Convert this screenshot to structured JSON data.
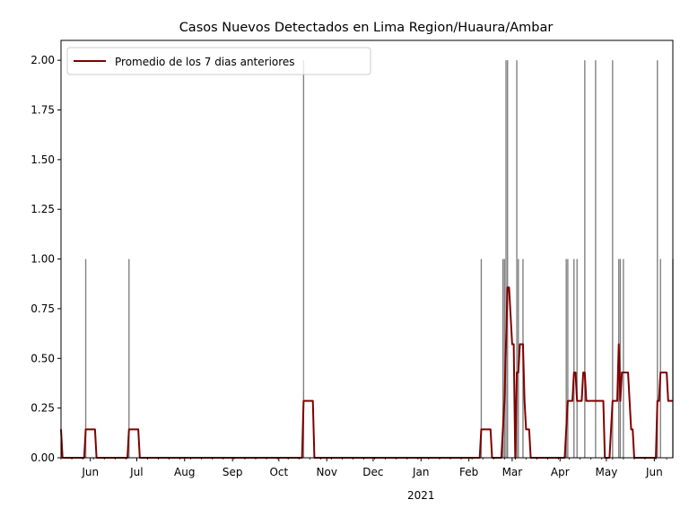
{
  "chart_data": {
    "type": "bar+line",
    "title": "Casos Nuevos Detectados en Lima Region/Huaura/Ambar",
    "xlabel": "",
    "ylabel": "",
    "date_range": [
      "2020-05-13",
      "2021-06-13"
    ],
    "ylim": [
      0,
      2.1
    ],
    "yticks": [
      0,
      0.25,
      0.5,
      0.75,
      1.0,
      1.25,
      1.5,
      1.75,
      2.0
    ],
    "ytick_labels": [
      "0.00",
      "0.25",
      "0.50",
      "0.75",
      "1.00",
      "1.25",
      "1.50",
      "1.75",
      "2.00"
    ],
    "xticks": [
      {
        "date": "2020-06-01",
        "label": "Jun"
      },
      {
        "date": "2020-07-01",
        "label": "Jul"
      },
      {
        "date": "2020-08-01",
        "label": "Aug"
      },
      {
        "date": "2020-09-01",
        "label": "Sep"
      },
      {
        "date": "2020-10-01",
        "label": "Oct"
      },
      {
        "date": "2020-11-01",
        "label": "Nov"
      },
      {
        "date": "2020-12-01",
        "label": "Dec"
      },
      {
        "date": "2021-01-01",
        "label": "Jan"
      },
      {
        "date": "2021-02-01",
        "label": "Feb"
      },
      {
        "date": "2021-03-01",
        "label": "Mar"
      },
      {
        "date": "2021-04-01",
        "label": "Apr"
      },
      {
        "date": "2021-05-01",
        "label": "May"
      },
      {
        "date": "2021-06-01",
        "label": "Jun"
      }
    ],
    "year_label": {
      "date": "2021-01-01",
      "label": "2021"
    },
    "bar_color": "#808080",
    "line_color": "#800000",
    "legend": {
      "position": "top-left",
      "label": "Promedio de los 7 dias anteriores"
    },
    "bars": [
      {
        "date": "2020-05-29",
        "value": 1
      },
      {
        "date": "2020-06-26",
        "value": 1
      },
      {
        "date": "2020-10-17",
        "value": 2
      },
      {
        "date": "2021-02-09",
        "value": 1
      },
      {
        "date": "2021-02-23",
        "value": 1
      },
      {
        "date": "2021-02-24",
        "value": 1
      },
      {
        "date": "2021-02-25",
        "value": 2
      },
      {
        "date": "2021-02-26",
        "value": 2
      },
      {
        "date": "2021-03-04",
        "value": 2
      },
      {
        "date": "2021-03-05",
        "value": 1
      },
      {
        "date": "2021-03-08",
        "value": 1
      },
      {
        "date": "2021-04-05",
        "value": 1
      },
      {
        "date": "2021-04-06",
        "value": 1
      },
      {
        "date": "2021-04-10",
        "value": 1
      },
      {
        "date": "2021-04-12",
        "value": 1
      },
      {
        "date": "2021-04-17",
        "value": 2
      },
      {
        "date": "2021-04-24",
        "value": 2
      },
      {
        "date": "2021-05-05",
        "value": 2
      },
      {
        "date": "2021-05-09",
        "value": 1
      },
      {
        "date": "2021-05-10",
        "value": 1
      },
      {
        "date": "2021-05-12",
        "value": 1
      },
      {
        "date": "2021-06-03",
        "value": 2
      },
      {
        "date": "2021-06-05",
        "value": 1
      },
      {
        "date": "2021-06-13",
        "value": 1
      }
    ],
    "series": [
      {
        "name": "Promedio de los 7 dias anteriores",
        "points": [
          [
            "2020-05-13",
            0.143
          ],
          [
            "2020-05-14",
            0
          ],
          [
            "2020-05-28",
            0
          ],
          [
            "2020-05-29",
            0.143
          ],
          [
            "2020-06-04",
            0.143
          ],
          [
            "2020-06-05",
            0
          ],
          [
            "2020-06-25",
            0
          ],
          [
            "2020-06-26",
            0.143
          ],
          [
            "2020-07-02",
            0.143
          ],
          [
            "2020-07-03",
            0
          ],
          [
            "2020-10-16",
            0
          ],
          [
            "2020-10-17",
            0.286
          ],
          [
            "2020-10-23",
            0.286
          ],
          [
            "2020-10-24",
            0
          ],
          [
            "2021-02-08",
            0
          ],
          [
            "2021-02-09",
            0.143
          ],
          [
            "2021-02-15",
            0.143
          ],
          [
            "2021-02-16",
            0
          ],
          [
            "2021-02-22",
            0
          ],
          [
            "2021-02-23",
            0.143
          ],
          [
            "2021-02-24",
            0.286
          ],
          [
            "2021-02-25",
            0.571
          ],
          [
            "2021-02-26",
            0.857
          ],
          [
            "2021-02-27",
            0.857
          ],
          [
            "2021-03-01",
            0.571
          ],
          [
            "2021-03-02",
            0.571
          ],
          [
            "2021-03-03",
            0
          ],
          [
            "2021-03-04",
            0.429
          ],
          [
            "2021-03-05",
            0.429
          ],
          [
            "2021-03-06",
            0.571
          ],
          [
            "2021-03-08",
            0.571
          ],
          [
            "2021-03-09",
            0.286
          ],
          [
            "2021-03-10",
            0.143
          ],
          [
            "2021-03-12",
            0.143
          ],
          [
            "2021-03-13",
            0
          ],
          [
            "2021-04-04",
            0
          ],
          [
            "2021-04-05",
            0.143
          ],
          [
            "2021-04-06",
            0.286
          ],
          [
            "2021-04-09",
            0.286
          ],
          [
            "2021-04-10",
            0.429
          ],
          [
            "2021-04-11",
            0.429
          ],
          [
            "2021-04-12",
            0.286
          ],
          [
            "2021-04-15",
            0.286
          ],
          [
            "2021-04-16",
            0.429
          ],
          [
            "2021-04-17",
            0.429
          ],
          [
            "2021-04-18",
            0.286
          ],
          [
            "2021-04-29",
            0.286
          ],
          [
            "2021-04-30",
            0
          ],
          [
            "2021-05-03",
            0
          ],
          [
            "2021-05-04",
            0.143
          ],
          [
            "2021-05-05",
            0.286
          ],
          [
            "2021-05-08",
            0.286
          ],
          [
            "2021-05-09",
            0.571
          ],
          [
            "2021-05-10",
            0.286
          ],
          [
            "2021-05-11",
            0.429
          ],
          [
            "2021-05-15",
            0.429
          ],
          [
            "2021-05-16",
            0.286
          ],
          [
            "2021-05-17",
            0.143
          ],
          [
            "2021-05-18",
            0.143
          ],
          [
            "2021-05-19",
            0
          ],
          [
            "2021-06-02",
            0
          ],
          [
            "2021-06-03",
            0.286
          ],
          [
            "2021-06-04",
            0.286
          ],
          [
            "2021-06-05",
            0.429
          ],
          [
            "2021-06-09",
            0.429
          ],
          [
            "2021-06-10",
            0.286
          ],
          [
            "2021-06-13",
            0.286
          ]
        ]
      }
    ]
  }
}
